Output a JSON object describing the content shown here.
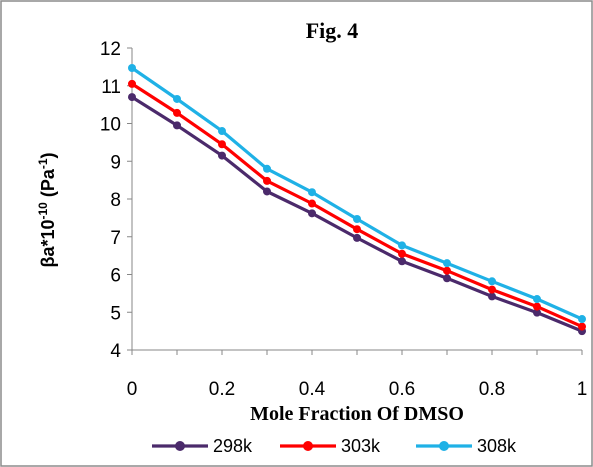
{
  "chart_data": {
    "type": "line",
    "title": "Fig. 4",
    "xlabel": "Mole Fraction Of DMSO",
    "ylabel": {
      "main": "βa*10",
      "exp": "-10",
      "unit": " (Pa",
      "unit_exp": "-1",
      "close": ")"
    },
    "xlim": [
      0,
      1
    ],
    "ylim": [
      4,
      12
    ],
    "xticks": [
      0,
      0.2,
      0.4,
      0.6,
      0.8,
      1
    ],
    "xtick_labels": [
      "0",
      "0.2",
      "0.4",
      "0.6",
      "0.8",
      "1"
    ],
    "yticks": [
      4,
      5,
      6,
      7,
      8,
      9,
      10,
      11,
      12
    ],
    "grid": false,
    "legend_position": "bottom",
    "x": [
      0,
      0.1,
      0.2,
      0.3,
      0.4,
      0.5,
      0.6,
      0.7,
      0.8,
      0.9,
      1
    ],
    "series": [
      {
        "name": "298k",
        "color": "#4b2a6b",
        "values": [
          10.7,
          9.95,
          9.15,
          8.2,
          7.62,
          6.97,
          6.35,
          5.9,
          5.42,
          4.99,
          4.5
        ]
      },
      {
        "name": "303k",
        "color": "#ff0000",
        "values": [
          11.05,
          10.28,
          9.45,
          8.48,
          7.88,
          7.2,
          6.55,
          6.1,
          5.6,
          5.15,
          4.62
        ]
      },
      {
        "name": "308k",
        "color": "#1fb1e6",
        "values": [
          11.47,
          10.65,
          9.8,
          8.8,
          8.18,
          7.47,
          6.77,
          6.3,
          5.82,
          5.35,
          4.82
        ]
      }
    ]
  }
}
